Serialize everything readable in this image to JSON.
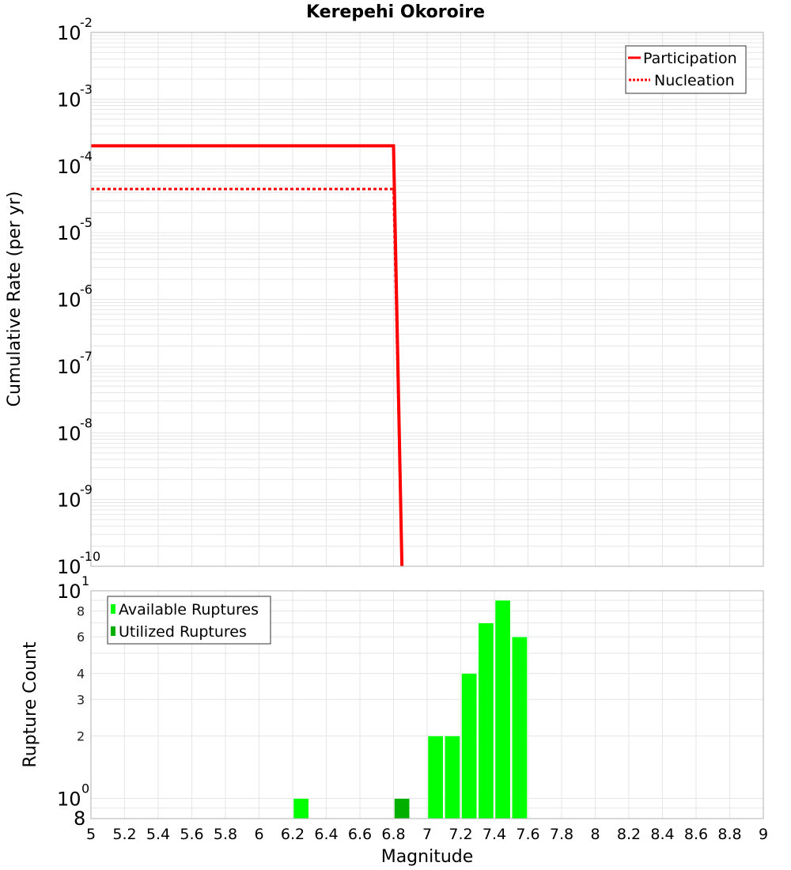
{
  "chart_data": [
    {
      "type": "line",
      "title": "Kerepehi Okoroire",
      "xlabel": "Magnitude",
      "ylabel": "Cumulative Rate (per yr)",
      "yscale": "log",
      "xlim": [
        5,
        9
      ],
      "ylim": [
        1e-10,
        0.01
      ],
      "y_tick_labels": [
        "10^-2",
        "10^-3",
        "10^-4",
        "10^-5",
        "10^-6",
        "10^-7",
        "10^-8",
        "10^-9",
        "10^-10"
      ],
      "grid": true,
      "legend_position": "upper right",
      "series": [
        {
          "name": "Participation",
          "style": "solid",
          "color": "#ff0000",
          "x": [
            5.0,
            6.8,
            6.85
          ],
          "y": [
            0.0002,
            0.0002,
            1e-10
          ]
        },
        {
          "name": "Nucleation",
          "style": "dotted",
          "color": "#ff0000",
          "x": [
            5.0,
            6.8,
            6.85
          ],
          "y": [
            4.5e-05,
            4.5e-05,
            1e-10
          ]
        }
      ]
    },
    {
      "type": "bar",
      "xlabel": "Magnitude",
      "ylabel": "Rupture Count",
      "yscale": "log",
      "xlim": [
        5,
        9
      ],
      "ylim": [
        0.8,
        10
      ],
      "x_tick_labels": [
        "5",
        "5.2",
        "5.4",
        "5.6",
        "5.8",
        "6",
        "6.2",
        "6.4",
        "6.6",
        "6.8",
        "7",
        "7.2",
        "7.4",
        "7.6",
        "7.8",
        "8",
        "8.2",
        "8.4",
        "8.6",
        "8.8",
        "9"
      ],
      "y_tick_labels": [
        "8",
        "10^0",
        "2",
        "3",
        "4",
        "6",
        "8",
        "10^1"
      ],
      "grid": true,
      "legend_position": "upper left",
      "series": [
        {
          "name": "Available Ruptures",
          "color": "#00ff00",
          "bins": [
            {
              "x0": 6.2,
              "x1": 6.3,
              "count": 1
            },
            {
              "x0": 7.0,
              "x1": 7.1,
              "count": 2
            },
            {
              "x0": 7.1,
              "x1": 7.2,
              "count": 2
            },
            {
              "x0": 7.2,
              "x1": 7.3,
              "count": 4
            },
            {
              "x0": 7.3,
              "x1": 7.4,
              "count": 7
            },
            {
              "x0": 7.4,
              "x1": 7.5,
              "count": 9
            },
            {
              "x0": 7.5,
              "x1": 7.6,
              "count": 6
            }
          ]
        },
        {
          "name": "Utilized Ruptures",
          "color": "#00b000",
          "bins": [
            {
              "x0": 6.8,
              "x1": 6.9,
              "count": 1
            }
          ]
        }
      ]
    }
  ],
  "labels": {
    "title": "Kerepehi Okoroire",
    "top_ylabel": "Cumulative Rate (per yr)",
    "bottom_ylabel": "Rupture Count",
    "xlabel": "Magnitude",
    "legend_participation": "Participation",
    "legend_nucleation": "Nucleation",
    "legend_available": "Available Ruptures",
    "legend_utilized": "Utilized Ruptures"
  },
  "colors": {
    "rate_line": "#ff0000",
    "available": "#00ff00",
    "utilized": "#00b000",
    "grid": "#e6e6e6",
    "frame": "#b0b0b0"
  }
}
